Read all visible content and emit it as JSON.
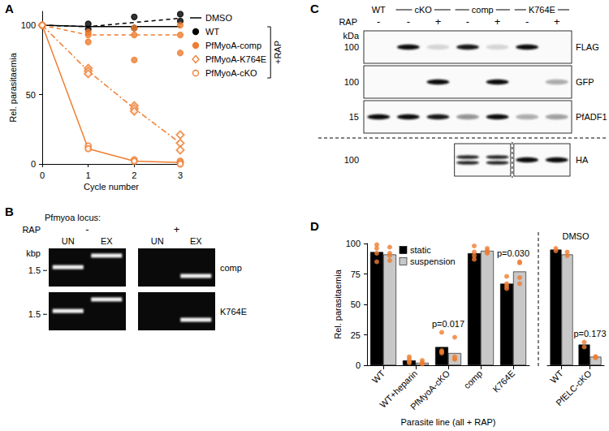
{
  "chart_data": [
    {
      "panel": "A",
      "type": "line",
      "x_label": "Cycle number",
      "y_label": "Rel. parasitaemia",
      "x": [
        0,
        1,
        2,
        3
      ],
      "xlim": [
        0,
        3
      ],
      "xticks": [
        0,
        1,
        2,
        3
      ],
      "ylim": [
        0,
        110
      ],
      "yticks": [
        0,
        50,
        100
      ],
      "grid": false,
      "legend": "right",
      "bracket": {
        "text": "+RAP",
        "series": [
          "WT",
          "PfMyoA-comp",
          "PfMyoA-K764E",
          "PfMyoA-cKO"
        ]
      },
      "series": [
        {
          "name": "DMSO",
          "color": "#000000",
          "line_style": "solid",
          "marker": "none",
          "values": [
            100,
            99,
            99,
            99
          ]
        },
        {
          "name": "WT",
          "color": "#000000",
          "line_style": "dashed",
          "marker": "circle",
          "values": [
            100,
            99,
            102,
            105
          ],
          "points": {
            "x": [
              0,
              1,
              1,
              2,
              2,
              3,
              3
            ],
            "y": [
              100,
              97,
              101,
              106,
              98,
              108,
              103
            ]
          }
        },
        {
          "name": "PfMyoA-comp",
          "color": "#ef7d31",
          "line_style": "dashed",
          "marker": "circle",
          "values": [
            100,
            93,
            93,
            93
          ],
          "points": {
            "x": [
              0,
              1,
              1,
              1,
              2,
              2,
              2,
              3,
              3,
              3
            ],
            "y": [
              100,
              95,
              93,
              88,
              98,
              93,
              75,
              100,
              93,
              80
            ]
          }
        },
        {
          "name": "PfMyoA-K764E",
          "color": "#ef7d31",
          "line_style": "dashdot",
          "marker": "open_diamond",
          "values": [
            100,
            67,
            40,
            15
          ],
          "points": {
            "x": [
              0,
              1,
              1,
              1,
              2,
              2,
              2,
              3,
              3,
              3
            ],
            "y": [
              100,
              69,
              67,
              65,
              42,
              40,
              38,
              21,
              15,
              10
            ]
          }
        },
        {
          "name": "PfMyoA-cKO",
          "color": "#ef7d31",
          "line_style": "solid",
          "marker": "open_circle",
          "values": [
            100,
            11,
            2,
            1
          ],
          "points": {
            "x": [
              0,
              1,
              1,
              2,
              2,
              3,
              3,
              3
            ],
            "y": [
              100,
              13,
              11,
              3,
              2,
              2,
              1,
              0
            ]
          }
        }
      ]
    },
    {
      "panel": "D",
      "type": "bar",
      "x_label": "Parasite line (all + RAP)",
      "y_label": "Rel. parasitaemia",
      "ylim": [
        0,
        100
      ],
      "yticks": [
        0,
        25,
        50,
        75,
        100
      ],
      "grid": false,
      "legend": "upper left",
      "point_color": "#ef7d31",
      "sections": [
        {
          "categories": [
            "WT",
            "WT+heparin",
            "PfMyoA-cKO",
            "comp",
            "K764E"
          ],
          "series": [
            {
              "name": "static",
              "color": "#000000",
              "values": [
                93,
                4,
                15,
                92,
                67
              ],
              "points": [
                [
                  99,
                  96,
                  92,
                  85
                ],
                [
                  7,
                  5,
                  3,
                  2
                ],
                [
                  27,
                  12,
                  10,
                  11
                ],
                [
                  98,
                  93,
                  90,
                  87
                ],
                [
                  73,
                  67,
                  65,
                  63
                ]
              ]
            },
            {
              "name": "suspension",
              "color": "#c8c8c8",
              "values": [
                91,
                2,
                10,
                94,
                77
              ],
              "points": [
                [
                  97,
                  92,
                  90,
                  86
                ],
                [
                  4,
                  2,
                  2,
                  1
                ],
                [
                  23,
                  5,
                  5,
                  7
                ],
                [
                  96,
                  94,
                  93,
                  92
                ],
                [
                  85,
                  84,
                  72,
                  67
                ]
              ]
            }
          ],
          "annotations": [
            {
              "category": "PfMyoA-cKO",
              "text": "p=0.017"
            },
            {
              "category": "K764E",
              "text": "p=0.030"
            }
          ]
        },
        {
          "title": "DMSO",
          "categories": [
            "WT",
            "PfELC-cKO"
          ],
          "series": [
            {
              "name": "static",
              "color": "#000000",
              "values": [
                95,
                17
              ],
              "points": [
                [
                  96,
                  94
                ],
                [
                  19,
                  15
                ]
              ]
            },
            {
              "name": "suspension",
              "color": "#c8c8c8",
              "values": [
                91,
                7
              ],
              "points": [
                [
                  93,
                  90
                ],
                [
                  7,
                  7,
                  6
                ]
              ]
            }
          ],
          "annotations": [
            {
              "category": "PfELC-cKO",
              "text": "p=0.173"
            }
          ]
        }
      ]
    }
  ],
  "gel": {
    "panel": "B",
    "title": "Pfmyoa locus:",
    "row_label": "RAP",
    "unit": "kbp",
    "ylim": [
      1.1,
      2.3
    ],
    "log": "y",
    "marker": 1.5,
    "rap_groups": [
      {
        "text": "-",
        "lanes": [
          0,
          1
        ]
      },
      {
        "text": "+",
        "lanes": [
          2,
          3
        ]
      }
    ],
    "lanes": [
      "UN",
      "EX",
      "UN",
      "EX"
    ],
    "rows": [
      {
        "name": "comp",
        "bands": [
          {
            "lane": 0,
            "kbp": 1.6
          },
          {
            "lane": 1,
            "kbp": 2.0
          },
          {
            "lane": 3,
            "kbp": 1.35
          }
        ]
      },
      {
        "name": "K764E",
        "bands": [
          {
            "lane": 0,
            "kbp": 1.6
          },
          {
            "lane": 1,
            "kbp": 2.0
          },
          {
            "lane": 3,
            "kbp": 1.35
          }
        ]
      }
    ]
  },
  "blot": {
    "panel": "C",
    "row_label": "RAP",
    "unit": "kDa",
    "groups": [
      {
        "text": "WT",
        "lanes": [
          0
        ]
      },
      {
        "text": "cKO",
        "lanes": [
          1,
          2
        ]
      },
      {
        "text": "comp",
        "lanes": [
          3,
          4
        ]
      },
      {
        "text": "K764E",
        "lanes": [
          5,
          6
        ]
      }
    ],
    "rap": [
      "-",
      "-",
      "+",
      "-",
      "+",
      "-",
      "+"
    ],
    "rows": [
      {
        "name": "FLAG",
        "kda": 100,
        "intensity": [
          0,
          1,
          0.15,
          0.95,
          0.15,
          1,
          0
        ]
      },
      {
        "name": "GFP",
        "kda": 100,
        "intensity": [
          0,
          0,
          1,
          0,
          1,
          0,
          0.35
        ]
      },
      {
        "name": "PfADF1",
        "kda": 15,
        "intensity": [
          1,
          1,
          0.95,
          0.45,
          1,
          0.35,
          0.4
        ]
      },
      {
        "name": "HA",
        "kda": 100,
        "line_style": "dashed",
        "intensity": [
          0,
          0,
          0,
          0.9,
          0.9,
          1,
          1
        ],
        "bands": [
          0,
          0,
          0,
          2,
          2,
          1,
          1
        ],
        "boxes": [
          [
            3,
            4
          ],
          [
            5,
            6
          ]
        ]
      }
    ]
  }
}
